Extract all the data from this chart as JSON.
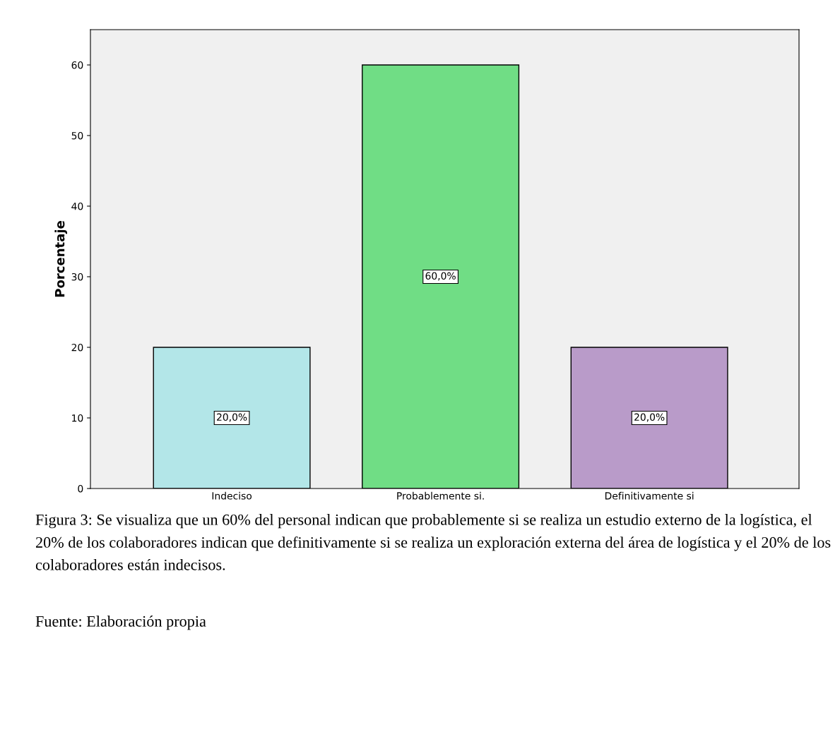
{
  "chart_data": {
    "type": "bar",
    "ylabel": "Porcentaje",
    "categories": [
      "Indeciso",
      "Probablemente si.",
      "Definitivamente si"
    ],
    "values": [
      20,
      60,
      20
    ],
    "colors": [
      "#b3e6e8",
      "#70dd85",
      "#b99bc9"
    ],
    "value_labels": [
      "20,0%",
      "60,0%",
      "20,0%"
    ],
    "ylim": [
      0,
      65
    ],
    "yticks": [
      0,
      10,
      20,
      30,
      40,
      50,
      60
    ],
    "grid": false,
    "annotations": [
      "Figura 3: Se visualiza que un 60% del personal indican que probablemente si se realiza un estudio externo de la logística, el 20% de los colaboradores indican que definitivamente si se realiza un exploración externa del área de logística y el 20% de los colaboradores están indecisos.",
      "Fuente: Elaboración propia"
    ]
  }
}
